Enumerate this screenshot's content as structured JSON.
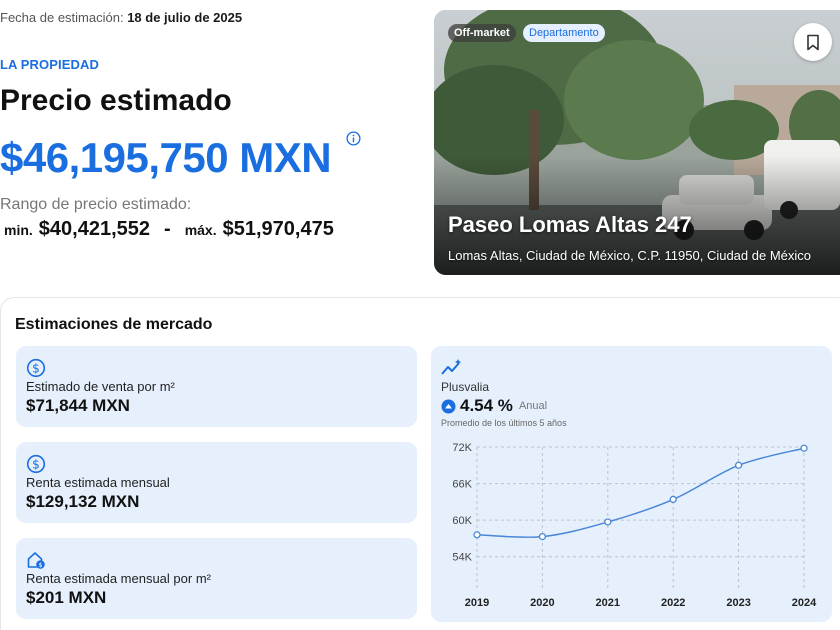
{
  "estimate_date": {
    "label": "Fecha de estimación:",
    "value": "18 de julio de 2025"
  },
  "section_label": "LA PROPIEDAD",
  "title": "Precio estimado",
  "price": "$46,195,750 MXN",
  "range": {
    "label": "Rango de precio estimado:",
    "min_label": "min.",
    "min_value": "$40,421,552",
    "separator": "-",
    "max_label": "máx.",
    "max_value": "$51,970,475"
  },
  "photo": {
    "badges": [
      "Off-market",
      "Departamento"
    ],
    "title": "Paseo Lomas Altas 247",
    "address": "Lomas Altas, Ciudad de México, C.P. 11950, Ciudad de México"
  },
  "market": {
    "title": "Estimaciones de mercado",
    "cards": [
      {
        "label": "Estimado de venta por m²",
        "value": "$71,844 MXN",
        "icon": "dollar-circle-icon"
      },
      {
        "label": "Renta estimada mensual",
        "value": "$129,132 MXN",
        "icon": "dollar-circle-icon"
      },
      {
        "label": "Renta estimada mensual por m²",
        "value": "$201 MXN",
        "icon": "house-dollar-icon"
      }
    ],
    "plusvalia": {
      "label": "Plusvalia",
      "value": "4.54 %",
      "period": "Anual",
      "note": "Promedio de los últimos 5 años"
    }
  },
  "chart_data": {
    "type": "line",
    "x": [
      "2019",
      "2020",
      "2021",
      "2022",
      "2023",
      "2024"
    ],
    "y_ticks": [
      "54K",
      "60K",
      "66K",
      "72K"
    ],
    "ylim": [
      51000,
      72000
    ],
    "series": [
      {
        "values": [
          57600,
          57300,
          59700,
          63400,
          69000,
          71800
        ]
      }
    ],
    "grid": true,
    "color": "#4a86d8"
  },
  "colors": {
    "accent": "#1a6ee0",
    "card_bg": "#e6f0fc"
  }
}
